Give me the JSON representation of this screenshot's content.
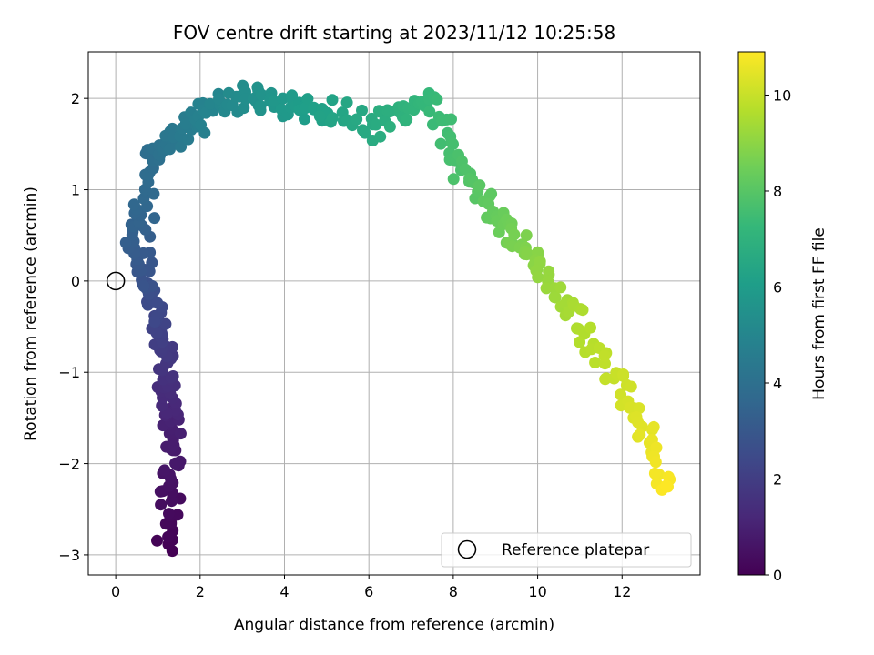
{
  "chart_data": {
    "type": "scatter",
    "title": "FOV centre drift starting at 2023/11/12 10:25:58",
    "xlabel": "Angular distance from reference (arcmin)",
    "ylabel": "Rotation from reference (arcmin)",
    "xlim": [
      -0.65,
      13.85
    ],
    "ylim": [
      -3.22,
      2.51
    ],
    "xticks": [
      "0",
      "2",
      "4",
      "6",
      "8",
      "10",
      "12"
    ],
    "xtick_values": [
      0,
      2,
      4,
      6,
      8,
      10,
      12
    ],
    "yticks": [
      "−3",
      "−2",
      "−1",
      "0",
      "1",
      "2"
    ],
    "ytick_values": [
      -3,
      -2,
      -1,
      0,
      1,
      2
    ],
    "grid": true,
    "colormap": "viridis",
    "colorbar": {
      "label": "Hours from first FF file",
      "range": [
        0,
        10.9
      ],
      "ticks": [
        "0",
        "2",
        "4",
        "6",
        "8",
        "10"
      ],
      "tick_values": [
        0,
        2,
        4,
        6,
        8,
        10
      ]
    },
    "legend": {
      "label": "Reference platepar",
      "position": "lower right"
    },
    "reference_point": {
      "x": 0,
      "y": 0
    },
    "path_anchors": [
      {
        "x": 1.3,
        "y": -2.92,
        "t": 0
      },
      {
        "x": 1.25,
        "y": -2.3,
        "t": 0.45
      },
      {
        "x": 1.35,
        "y": -1.6,
        "t": 1.0
      },
      {
        "x": 1.2,
        "y": -1.0,
        "t": 1.6
      },
      {
        "x": 1.0,
        "y": -0.5,
        "t": 2.2
      },
      {
        "x": 0.75,
        "y": 0.0,
        "t": 2.8
      },
      {
        "x": 0.45,
        "y": 0.5,
        "t": 3.3
      },
      {
        "x": 0.55,
        "y": 0.8,
        "t": 3.6
      },
      {
        "x": 0.8,
        "y": 1.3,
        "t": 3.9
      },
      {
        "x": 1.3,
        "y": 1.55,
        "t": 4.3
      },
      {
        "x": 2.0,
        "y": 1.8,
        "t": 4.8
      },
      {
        "x": 3.0,
        "y": 2.0,
        "t": 5.3
      },
      {
        "x": 3.9,
        "y": 1.95,
        "t": 5.8
      },
      {
        "x": 4.8,
        "y": 1.85,
        "t": 6.2
      },
      {
        "x": 6.0,
        "y": 1.7,
        "t": 6.6
      },
      {
        "x": 7.5,
        "y": 2.0,
        "t": 7.3
      },
      {
        "x": 8.2,
        "y": 1.2,
        "t": 7.8
      },
      {
        "x": 9.0,
        "y": 0.7,
        "t": 8.3
      },
      {
        "x": 10.0,
        "y": 0.2,
        "t": 9.0
      },
      {
        "x": 11.0,
        "y": -0.5,
        "t": 9.6
      },
      {
        "x": 12.0,
        "y": -1.2,
        "t": 10.1
      },
      {
        "x": 12.6,
        "y": -1.7,
        "t": 10.5
      },
      {
        "x": 13.1,
        "y": -2.3,
        "t": 10.9
      }
    ],
    "point_count": 420
  }
}
